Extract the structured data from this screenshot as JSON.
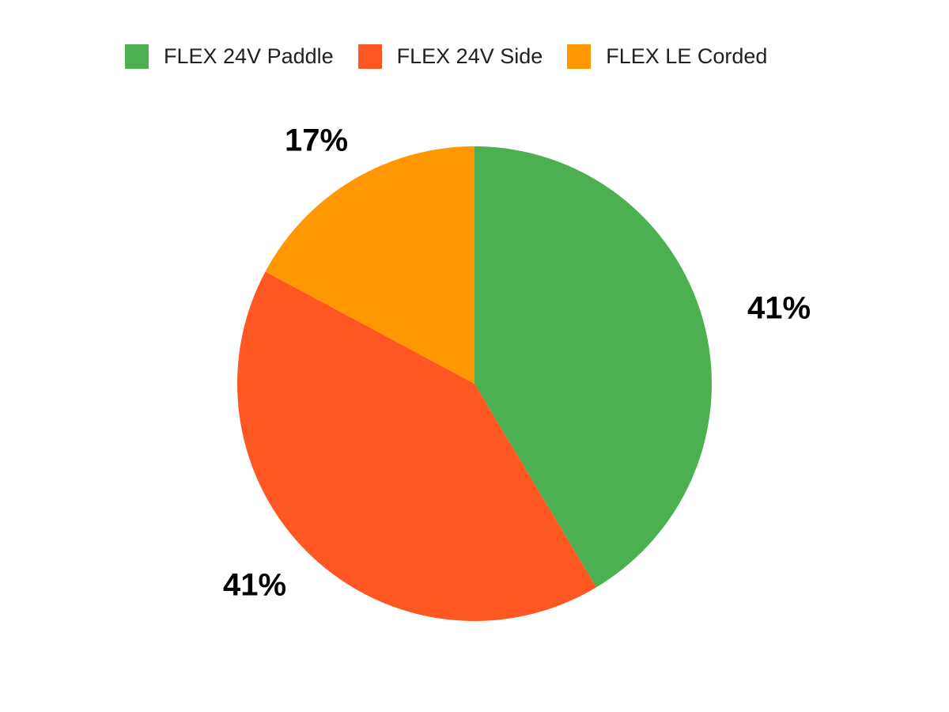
{
  "chart_data": {
    "type": "pie",
    "title": "",
    "legend_position": "top",
    "direction": "clockwise",
    "start_angle_deg": 0,
    "background": "#ffffff",
    "label_color": "#000000",
    "categories": [
      "FLEX 24V Paddle",
      "FLEX 24V Side",
      "FLEX LE Corded"
    ],
    "values": [
      41,
      41,
      17
    ],
    "slices": [
      {
        "label": "FLEX 24V Paddle",
        "value": 41,
        "display": "41%",
        "color": "#4caf50"
      },
      {
        "label": "FLEX 24V Side",
        "value": 41,
        "display": "41%",
        "color": "#ff5722"
      },
      {
        "label": "FLEX LE Corded",
        "value": 17,
        "display": "17%",
        "color": "#ff9800"
      }
    ]
  }
}
